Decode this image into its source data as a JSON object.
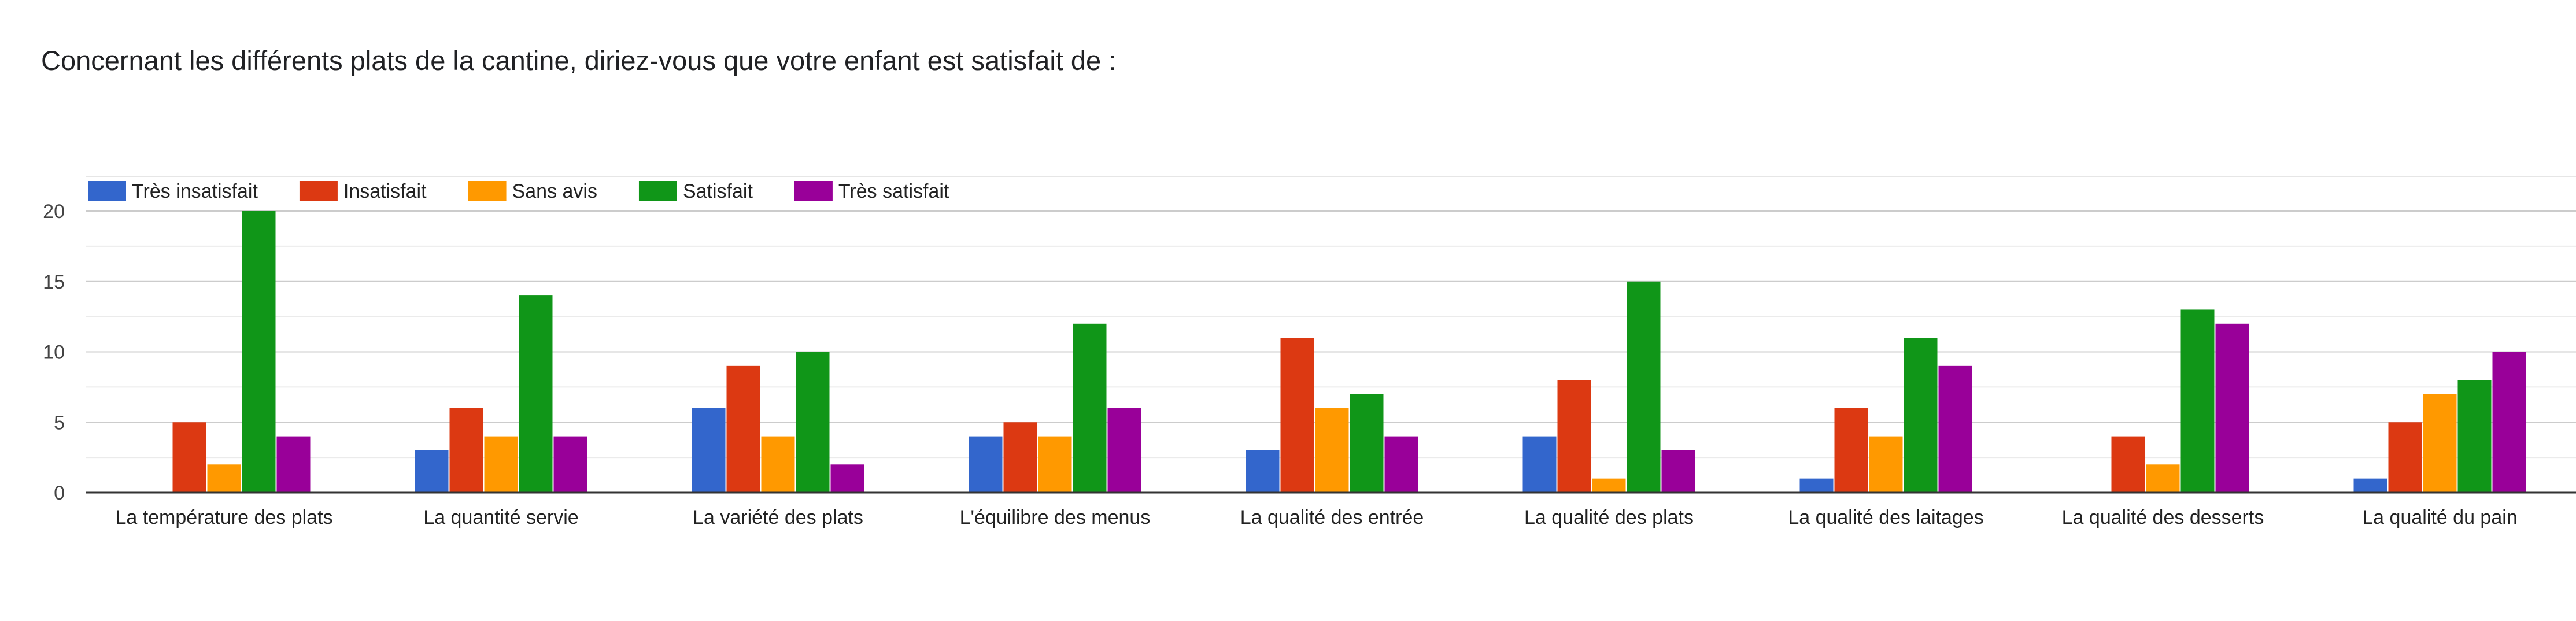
{
  "header": {
    "question": "Concernant les différents plats de la cantine, diriez-vous que votre enfant est satisfait de :"
  },
  "chart_data": {
    "type": "bar",
    "title": "Concernant les différents plats de la cantine, diriez-vous que votre enfant est satisfait de :",
    "xlabel": "",
    "ylabel": "",
    "ylim": [
      0,
      20
    ],
    "yticks": [
      0,
      5,
      10,
      15,
      20
    ],
    "grid": true,
    "legend_position": "top-left",
    "categories": [
      "La température des plats",
      "La quantité servie",
      "La variété des plats",
      "L'équilibre des menus",
      "La qualité des entrée",
      "La qualité des plats",
      "La qualité des laitages",
      "La qualité des desserts",
      "La qualité du pain"
    ],
    "series": [
      {
        "name": "Très insatisfait",
        "color": "#3366cc",
        "values": [
          0,
          3,
          6,
          4,
          3,
          4,
          1,
          0,
          1
        ]
      },
      {
        "name": "Insatisfait",
        "color": "#dc3912",
        "values": [
          5,
          6,
          9,
          5,
          11,
          8,
          6,
          4,
          5
        ]
      },
      {
        "name": "Sans avis",
        "color": "#ff9900",
        "values": [
          2,
          4,
          4,
          4,
          6,
          1,
          4,
          2,
          7
        ]
      },
      {
        "name": "Satisfait",
        "color": "#109618",
        "values": [
          20,
          14,
          10,
          12,
          7,
          15,
          11,
          13,
          8
        ]
      },
      {
        "name": "Très satisfait",
        "color": "#990099",
        "values": [
          4,
          4,
          2,
          6,
          4,
          3,
          9,
          12,
          10
        ]
      }
    ]
  }
}
